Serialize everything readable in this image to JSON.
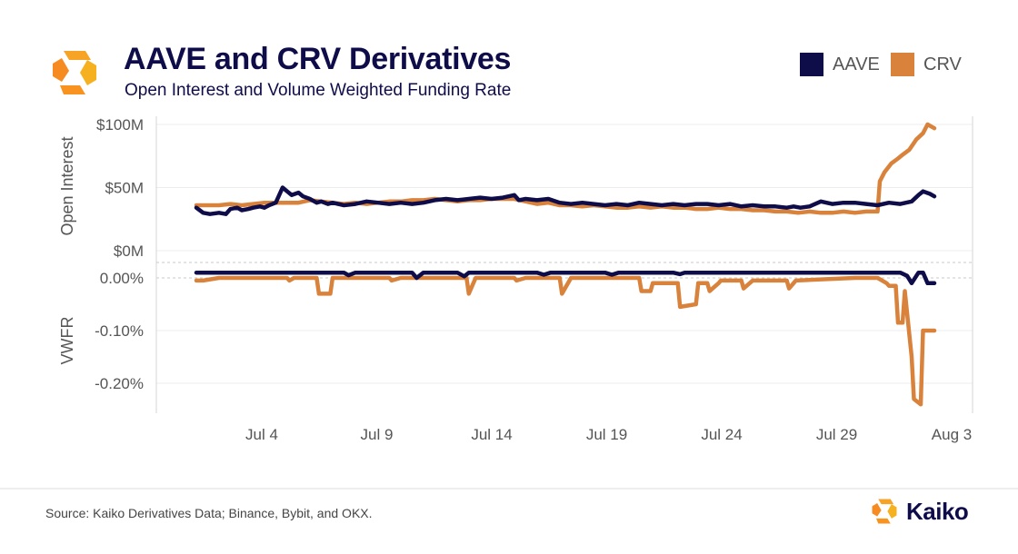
{
  "header": {
    "title": "AAVE and CRV Derivatives",
    "subtitle": "Open Interest and Volume Weighted Funding Rate"
  },
  "legend": [
    {
      "label": "AAVE",
      "color": "#0f0c4a"
    },
    {
      "label": "CRV",
      "color": "#d9823b"
    }
  ],
  "footer": {
    "source": "Source: Kaiko Derivatives Data; Binance, Bybit, and OKX.",
    "brand": "Kaiko"
  },
  "chart_data": [
    {
      "type": "line",
      "panel": "open-interest",
      "ylabel": "Open Interest",
      "ylim": [
        0,
        100
      ],
      "unit": "$M",
      "yticks": [
        {
          "value": 0,
          "label": "$0M"
        },
        {
          "value": 50,
          "label": "$50M"
        },
        {
          "value": 100,
          "label": "$100M"
        }
      ],
      "xticks": [
        {
          "value": 4,
          "label": "Jul 4"
        },
        {
          "value": 9,
          "label": "Jul 9"
        },
        {
          "value": 14,
          "label": "Jul 14"
        },
        {
          "value": 19,
          "label": "Jul 19"
        },
        {
          "value": 24,
          "label": "Jul 24"
        },
        {
          "value": 29,
          "label": "Jul 29"
        },
        {
          "value": 34,
          "label": "Aug 3"
        }
      ],
      "series": [
        {
          "name": "AAVE",
          "color": "#0f0c4a",
          "x": [
            0,
            0.3,
            0.6,
            1.0,
            1.3,
            1.5,
            1.8,
            2.0,
            2.3,
            2.5,
            2.8,
            3.0,
            3.2,
            3.5,
            3.8,
            4.0,
            4.2,
            4.5,
            4.7,
            5.0,
            5.3,
            5.5,
            5.8,
            6.0,
            6.5,
            7.0,
            7.5,
            8.0,
            8.5,
            9.0,
            9.5,
            10.0,
            10.5,
            11.0,
            11.5,
            12.0,
            12.5,
            13.0,
            13.5,
            14.0,
            14.2,
            14.5,
            15.0,
            15.5,
            16.0,
            16.5,
            17.0,
            17.5,
            18.0,
            18.5,
            19.0,
            19.5,
            20.0,
            20.5,
            21.0,
            21.5,
            22.0,
            22.5,
            23.0,
            23.5,
            24.0,
            24.5,
            25.0,
            25.5,
            26.0,
            26.3,
            26.6,
            27.0,
            27.5,
            28.0,
            28.5,
            29.0,
            29.5,
            30.0,
            30.5,
            31.0,
            31.5,
            31.8,
            32.0,
            32.3,
            32.5
          ],
          "values": [
            34,
            30,
            29,
            30,
            29,
            33,
            34,
            32,
            33,
            34,
            35,
            34,
            36,
            38,
            50,
            47,
            44,
            46,
            43,
            41,
            38,
            39,
            37,
            38,
            36,
            37,
            39,
            38,
            37,
            38,
            37,
            38,
            40,
            41,
            40,
            41,
            42,
            41,
            42,
            44,
            40,
            41,
            40,
            41,
            38,
            37,
            38,
            37,
            36,
            37,
            36,
            38,
            37,
            36,
            37,
            36,
            37,
            37,
            36,
            37,
            35,
            36,
            35,
            35,
            34,
            35,
            34,
            35,
            39,
            37,
            38,
            38,
            37,
            36,
            38,
            37,
            39,
            44,
            47,
            45,
            43
          ]
        },
        {
          "name": "CRV",
          "color": "#d9823b",
          "x": [
            0,
            0.5,
            1.0,
            1.5,
            2.0,
            2.5,
            3.0,
            3.5,
            4.0,
            4.5,
            5.0,
            5.5,
            6.0,
            6.5,
            7.0,
            7.5,
            8.0,
            8.5,
            9.0,
            9.5,
            10.0,
            10.5,
            11.0,
            11.5,
            12.0,
            12.5,
            13.0,
            13.5,
            14.0,
            14.5,
            15.0,
            15.5,
            16.0,
            16.5,
            17.0,
            17.5,
            18.0,
            18.5,
            19.0,
            19.5,
            20.0,
            20.5,
            21.0,
            21.5,
            22.0,
            22.5,
            23.0,
            23.5,
            24.0,
            24.5,
            25.0,
            25.5,
            26.0,
            26.5,
            27.0,
            27.5,
            28.0,
            28.5,
            29.0,
            29.5,
            30.0,
            30.1,
            30.3,
            30.6,
            30.9,
            31.1,
            31.4,
            31.7,
            32.0,
            32.2,
            32.4,
            32.5
          ],
          "values": [
            36,
            36,
            36,
            37,
            36,
            37,
            38,
            38,
            38,
            38,
            40,
            39,
            38,
            37,
            38,
            37,
            38,
            39,
            39,
            40,
            40,
            41,
            40,
            39,
            40,
            40,
            41,
            41,
            41,
            39,
            37,
            38,
            36,
            36,
            35,
            36,
            35,
            34,
            34,
            35,
            34,
            35,
            34,
            34,
            33,
            33,
            34,
            33,
            33,
            32,
            32,
            31,
            31,
            30,
            31,
            30,
            30,
            31,
            30,
            31,
            31,
            55,
            62,
            69,
            73,
            76,
            80,
            88,
            93,
            100,
            98,
            97
          ]
        }
      ]
    },
    {
      "type": "line",
      "panel": "vwfr",
      "ylabel": "VWFR",
      "ylim": [
        -0.25,
        0.005
      ],
      "yticks": [
        {
          "value": 0.0,
          "label": "0.00%"
        },
        {
          "value": -0.1,
          "label": "-0.10%"
        },
        {
          "value": -0.2,
          "label": "-0.20%"
        }
      ],
      "series": [
        {
          "name": "AAVE",
          "color": "#0f0c4a",
          "x": [
            0,
            6.5,
            6.7,
            7.0,
            9.5,
            9.7,
            10.0,
            11.5,
            11.8,
            12.0,
            15.0,
            15.3,
            15.6,
            18.0,
            18.3,
            18.6,
            21.0,
            21.3,
            21.5,
            31.0,
            31.3,
            31.5,
            31.8,
            32.0,
            32.2,
            32.5
          ],
          "values": [
            0.01,
            0.01,
            0.005,
            0.01,
            0.01,
            0.0,
            0.01,
            0.01,
            0.003,
            0.01,
            0.01,
            0.006,
            0.01,
            0.01,
            0.006,
            0.01,
            0.01,
            0.007,
            0.01,
            0.01,
            0.004,
            -0.01,
            0.01,
            0.01,
            -0.01,
            -0.01
          ]
        },
        {
          "name": "CRV",
          "color": "#d9823b",
          "x": [
            0,
            0.3,
            1.0,
            1.1,
            4.0,
            4.1,
            4.3,
            5.3,
            5.4,
            5.9,
            6.0,
            8.5,
            8.6,
            9.0,
            11.9,
            12.0,
            12.3,
            14.0,
            14.1,
            14.5,
            16.0,
            16.1,
            16.5,
            19.5,
            19.6,
            20.0,
            20.1,
            21.2,
            21.3,
            22.0,
            22.1,
            22.5,
            22.6,
            23.0,
            23.1,
            24.0,
            24.1,
            24.5,
            26.0,
            26.1,
            26.4,
            29.0,
            30.0,
            30.4,
            30.5,
            30.8,
            30.9,
            31.1,
            31.2,
            31.5,
            31.6,
            31.9,
            32.0,
            32.5
          ],
          "values": [
            -0.005,
            -0.005,
            0.0,
            0.0,
            0.0,
            -0.005,
            0.0,
            0.0,
            -0.03,
            -0.03,
            0.0,
            0.0,
            -0.005,
            0.0,
            0.0,
            -0.03,
            0.0,
            0.0,
            -0.005,
            0.0,
            0.0,
            -0.03,
            0.0,
            0.0,
            -0.025,
            -0.025,
            -0.01,
            -0.01,
            -0.055,
            -0.05,
            -0.01,
            -0.01,
            -0.025,
            -0.01,
            -0.005,
            -0.005,
            -0.02,
            -0.005,
            -0.005,
            -0.02,
            -0.005,
            0.0,
            0.0,
            -0.01,
            -0.015,
            -0.015,
            -0.085,
            -0.085,
            -0.025,
            -0.15,
            -0.23,
            -0.24,
            -0.1,
            -0.1
          ]
        }
      ]
    }
  ]
}
